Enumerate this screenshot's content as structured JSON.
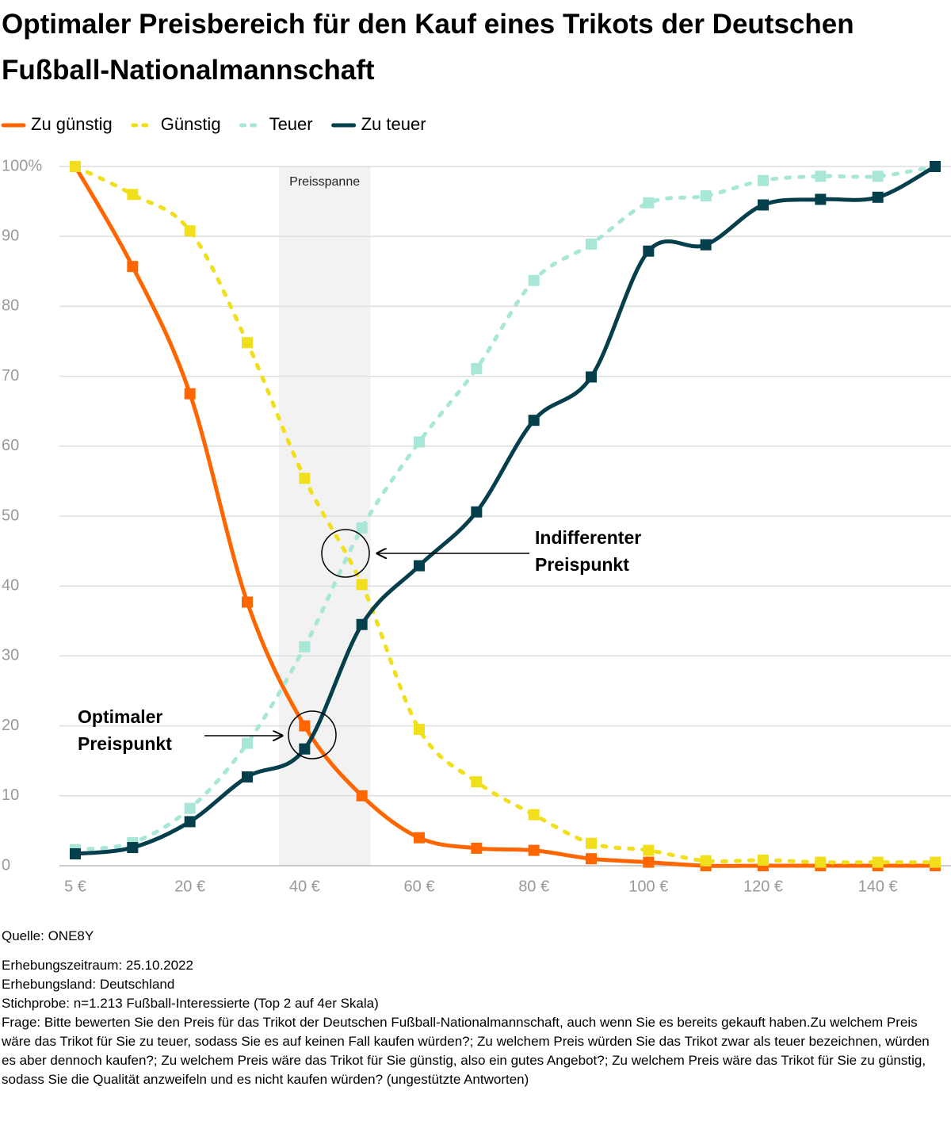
{
  "chart_data": {
    "type": "line",
    "title": "Optimaler Preisbereich für den Kauf eines Trikots der Deutschen Fußball-Nationalmannschaft",
    "categories": [
      "5 €",
      null,
      "20 €",
      null,
      "40 €",
      null,
      "60 €",
      null,
      "80 €",
      null,
      "100 €",
      null,
      "120 €",
      null,
      "140 €",
      null
    ],
    "series": [
      {
        "name": "Zu günstig",
        "color": "#ff6600",
        "dashed": false,
        "values": [
          100,
          85.7,
          67.5,
          37.7,
          20,
          10,
          4,
          2.5,
          2.2,
          1,
          0.5,
          0,
          0,
          0,
          0,
          0
        ]
      },
      {
        "name": "Günstig",
        "color": "#f2df1c",
        "dashed": true,
        "values": [
          100,
          96,
          90.8,
          74.8,
          55.4,
          40.2,
          19.5,
          12,
          7.3,
          3.2,
          2.2,
          0.7,
          0.8,
          0.5,
          0.5,
          0.5
        ]
      },
      {
        "name": "Teuer",
        "color": "#a8e6d7",
        "dashed": true,
        "values": [
          2.3,
          3.3,
          8.2,
          17.5,
          31.3,
          48.3,
          60.6,
          71.1,
          83.7,
          88.9,
          94.8,
          95.8,
          98,
          98.6,
          98.6,
          100
        ]
      },
      {
        "name": "Zu teuer",
        "color": "#053f4c",
        "dashed": false,
        "values": [
          1.7,
          2.6,
          6.3,
          12.7,
          16.7,
          34.5,
          42.9,
          50.6,
          63.7,
          69.9,
          87.9,
          88.8,
          94.5,
          95.3,
          95.6,
          100
        ]
      }
    ],
    "ylim": [
      0,
      100
    ],
    "yticks": [
      0,
      10,
      20,
      30,
      40,
      50,
      60,
      70,
      80,
      90,
      {
        "value": 100,
        "label": "100%"
      }
    ],
    "grid": true,
    "band_label": "Preisspanne",
    "annotations": [
      {
        "lines": [
          "Indifferenter",
          "Preispunkt"
        ]
      },
      {
        "lines": [
          "Optimaler",
          "Preispunkt"
        ]
      }
    ],
    "source": "Quelle: ONE8Y",
    "notes": [
      "Erhebungszeitraum: 25.10.2022",
      "Erhebungsland: Deutschland",
      "Stichprobe: n=1.213 Fußball-Interessierte (Top 2 auf 4er Skala)",
      "Frage: Bitte bewerten Sie den Preis für das Trikot der Deutschen Fußball-Nationalmannschaft, auch wenn Sie es bereits gekauft haben.Zu welchem Preis wäre das Trikot für Sie zu teuer, sodass Sie es auf keinen Fall kaufen würden?; Zu welchem Preis würden Sie das Trikot zwar als teuer bezeichnen, würden es aber dennoch kaufen?; Zu welchem Preis wäre das Trikot für Sie günstig, also ein gutes Angebot?; Zu welchem Preis wäre das Trikot für Sie zu günstig, sodass Sie die Qualität anzweifeln und es nicht kaufen würden? (ungestützte Antworten)"
    ]
  }
}
